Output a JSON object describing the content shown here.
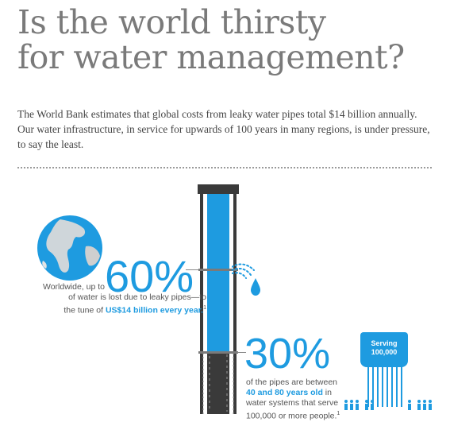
{
  "title": {
    "line1": "Is the world thirsty",
    "line2": "for water management?"
  },
  "intro": "The World Bank estimates that global costs from leaky water pipes total $14 billion annually. Our water infrastructure, in service for upwards of 100 years in many regions, is under pressure, to say the least.",
  "stat60": {
    "value": "60%",
    "pre": "Worldwide, up to",
    "line2": "of water is lost due to leaky pipes—to",
    "line3_a": "the tune of ",
    "line3_highlight": "US$14 billion every year.",
    "footnote": "1"
  },
  "stat30": {
    "value": "30%",
    "line1": "of the pipes are between",
    "line2_highlight": "40 and 80 years old",
    "line2_b": " in",
    "line3": "water systems that serve",
    "line4": "100,000 or more people.",
    "footnote": "1"
  },
  "tower": {
    "label1": "Serving",
    "label2": "100,000"
  },
  "colors": {
    "accent": "#1e9be0",
    "title": "#7a7a7a",
    "pipe_dark": "#3a3a3a"
  },
  "icons": [
    "globe-icon",
    "pipe-illustration",
    "water-drop-icon",
    "water-tower-icon",
    "people-icon"
  ]
}
